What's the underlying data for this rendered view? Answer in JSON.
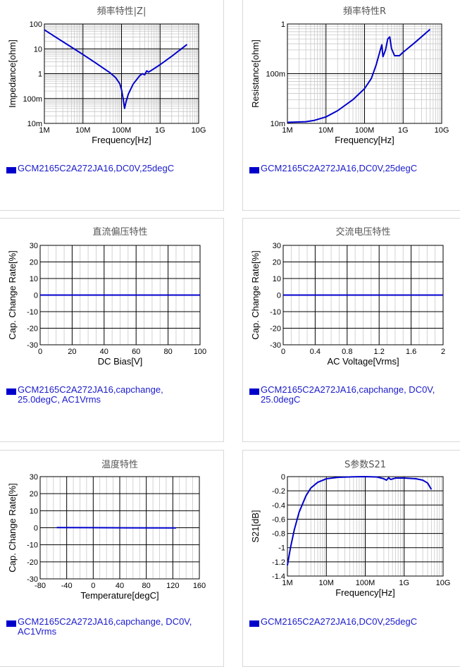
{
  "colors": {
    "series": "#0000cc",
    "major_grid": "#000000",
    "minor_grid": "#c8c8c8",
    "title": "#555555",
    "legend_text": "#1a1acc"
  },
  "panels": [
    {
      "id": "impedance",
      "title": "頻率特性|Z|",
      "legend": "GCM2165C2A272JA16,DC0V,25degC",
      "chart_data": {
        "type": "line",
        "xlabel": "Frequency[Hz]",
        "ylabel": "Impedance[ohm]",
        "xscale": "log",
        "yscale": "log",
        "xlim": [
          1000000,
          10000000000
        ],
        "ylim": [
          0.01,
          100
        ],
        "xticks": [
          1000000,
          10000000,
          100000000,
          1000000000,
          10000000000
        ],
        "xtick_labels": [
          "1M",
          "10M",
          "100M",
          "1G",
          "10G"
        ],
        "yticks": [
          0.01,
          0.1,
          1,
          10,
          100
        ],
        "ytick_labels": [
          "10m",
          "100m",
          "1",
          "10",
          "100"
        ],
        "series": [
          {
            "name": "GCM2165C2A272JA16,DC0V,25degC",
            "x": [
              1000000,
              2000000,
              5000000,
              10000000,
              20000000,
              50000000,
              70000000,
              90000000,
              100000000,
              110000000,
              120000000,
              130000000,
              150000000,
              200000000,
              300000000,
              350000000,
              400000000,
              450000000,
              500000000,
              700000000,
              1000000000,
              2000000000,
              5000000000
            ],
            "y": [
              58,
              29,
              11.8,
              5.9,
              2.9,
              1.1,
              0.7,
              0.4,
              0.23,
              0.1,
              0.04,
              0.07,
              0.15,
              0.38,
              0.85,
              1.0,
              0.9,
              1.3,
              1.15,
              1.6,
              2.3,
              5,
              15
            ]
          }
        ]
      }
    },
    {
      "id": "resistance",
      "title": "頻率特性R",
      "legend": "GCM2165C2A272JA16,DC0V,25degC",
      "chart_data": {
        "type": "line",
        "xlabel": "Frequency[Hz]",
        "ylabel": "Resistance[ohm]",
        "xscale": "log",
        "yscale": "log",
        "xlim": [
          1000000,
          10000000000
        ],
        "ylim": [
          0.01,
          1
        ],
        "xticks": [
          1000000,
          10000000,
          100000000,
          1000000000,
          10000000000
        ],
        "xtick_labels": [
          "1M",
          "10M",
          "100M",
          "1G",
          "10G"
        ],
        "yticks": [
          0.01,
          0.1,
          1
        ],
        "ytick_labels": [
          "10m",
          "100m",
          "1"
        ],
        "series": [
          {
            "name": "GCM2165C2A272JA16,DC0V,25degC",
            "x": [
              1000000,
              3000000,
              5000000,
              10000000,
              20000000,
              50000000,
              100000000,
              150000000,
              200000000,
              250000000,
              280000000,
              300000000,
              350000000,
              400000000,
              450000000,
              500000000,
              600000000,
              800000000,
              1000000000,
              2000000000,
              5000000000
            ],
            "y": [
              0.0105,
              0.0108,
              0.0115,
              0.0135,
              0.018,
              0.03,
              0.05,
              0.08,
              0.15,
              0.28,
              0.38,
              0.22,
              0.3,
              0.5,
              0.55,
              0.32,
              0.23,
              0.23,
              0.27,
              0.42,
              0.78
            ]
          }
        ]
      }
    },
    {
      "id": "dc_bias",
      "title": "直流偏压特性",
      "legend": "GCM2165C2A272JA16,capchange,\n25.0degC, AC1Vrms",
      "chart_data": {
        "type": "line",
        "xlabel": "DC Bias[V]",
        "ylabel": "Cap. Change Rate[%]",
        "xlim": [
          0,
          100
        ],
        "ylim": [
          -30,
          30
        ],
        "xticks": [
          0,
          20,
          40,
          60,
          80,
          100
        ],
        "xtick_labels": [
          "0",
          "20",
          "40",
          "60",
          "80",
          "100"
        ],
        "yticks": [
          -30,
          -20,
          -10,
          0,
          10,
          20,
          30
        ],
        "ytick_labels": [
          "-30",
          "-20",
          "-10",
          "0",
          "10",
          "20",
          "30"
        ],
        "series": [
          {
            "name": "GCM2165C2A272JA16,capchange,25.0degC, AC1Vrms",
            "x": [
              0,
              100
            ],
            "y": [
              0,
              0
            ]
          }
        ]
      }
    },
    {
      "id": "ac_voltage",
      "title": "交流电压特性",
      "legend": "GCM2165C2A272JA16,capchange, DC0V,\n25.0degC",
      "chart_data": {
        "type": "line",
        "xlabel": "AC Voltage[Vrms]",
        "ylabel": "Cap. Change Rate[%]",
        "xlim": [
          0,
          2
        ],
        "ylim": [
          -30,
          30
        ],
        "xticks": [
          0,
          0.4,
          0.8,
          1.2,
          1.6,
          2
        ],
        "xtick_labels": [
          "0",
          "0.4",
          "0.8",
          "1.2",
          "1.6",
          "2"
        ],
        "yticks": [
          -30,
          -20,
          -10,
          0,
          10,
          20,
          30
        ],
        "ytick_labels": [
          "-30",
          "-20",
          "-10",
          "0",
          "10",
          "20",
          "30"
        ],
        "series": [
          {
            "name": "GCM2165C2A272JA16,capchange, DC0V,25.0degC",
            "x": [
              0,
              2
            ],
            "y": [
              0,
              0
            ]
          }
        ]
      }
    },
    {
      "id": "temperature",
      "title": "温度特性",
      "legend": "GCM2165C2A272JA16,capchange, DC0V,\nAC1Vrms",
      "chart_data": {
        "type": "line",
        "xlabel": "Temperature[degC]",
        "ylabel": "Cap. Change Rate[%]",
        "xlim": [
          -80,
          160
        ],
        "ylim": [
          -30,
          30
        ],
        "xticks": [
          -80,
          -40,
          0,
          40,
          80,
          120,
          160
        ],
        "xtick_labels": [
          "-80",
          "-40",
          "0",
          "40",
          "80",
          "120",
          "160"
        ],
        "yticks": [
          -30,
          -20,
          -10,
          0,
          10,
          20,
          30
        ],
        "ytick_labels": [
          "-30",
          "-20",
          "-10",
          "0",
          "10",
          "20",
          "30"
        ],
        "series": [
          {
            "name": "GCM2165C2A272JA16,capchange, DC0V,AC1Vrms",
            "x": [
              -55,
              0,
              50,
              125
            ],
            "y": [
              0.1,
              0.05,
              -0.05,
              -0.1
            ]
          }
        ]
      }
    },
    {
      "id": "s21",
      "title": "S参数S21",
      "legend": "GCM2165C2A272JA16,DC0V,25degC",
      "chart_data": {
        "type": "line",
        "xlabel": "Frequency[Hz]",
        "ylabel": "S21[dB]",
        "xscale": "log",
        "xlim": [
          1000000,
          10000000000
        ],
        "ylim": [
          -1.4,
          0
        ],
        "xticks": [
          1000000,
          10000000,
          100000000,
          1000000000,
          10000000000
        ],
        "xtick_labels": [
          "1M",
          "10M",
          "100M",
          "1G",
          "10G"
        ],
        "yticks": [
          -1.4,
          -1.2,
          -1,
          -0.8,
          -0.6,
          -0.4,
          -0.2,
          0
        ],
        "ytick_labels": [
          "-1.4",
          "-1.2",
          "-1",
          "-0.8",
          "-0.6",
          "-0.4",
          "-0.2",
          "0"
        ],
        "series": [
          {
            "name": "GCM2165C2A272JA16,DC0V,25degC",
            "x": [
              1000000,
              1200000,
              1500000,
              2000000,
              3000000,
              4000000,
              6000000,
              10000000,
              20000000,
              50000000,
              100000000,
              200000000,
              300000000,
              350000000,
              400000000,
              450000000,
              600000000,
              1000000000,
              2000000000,
              3000000000,
              4000000000,
              5000000000
            ],
            "y": [
              -1.25,
              -1.0,
              -0.75,
              -0.5,
              -0.27,
              -0.16,
              -0.08,
              -0.03,
              -0.01,
              -0.002,
              0,
              -0.005,
              -0.03,
              -0.05,
              -0.015,
              -0.04,
              -0.02,
              -0.02,
              -0.03,
              -0.05,
              -0.09,
              -0.18
            ]
          }
        ]
      }
    }
  ]
}
